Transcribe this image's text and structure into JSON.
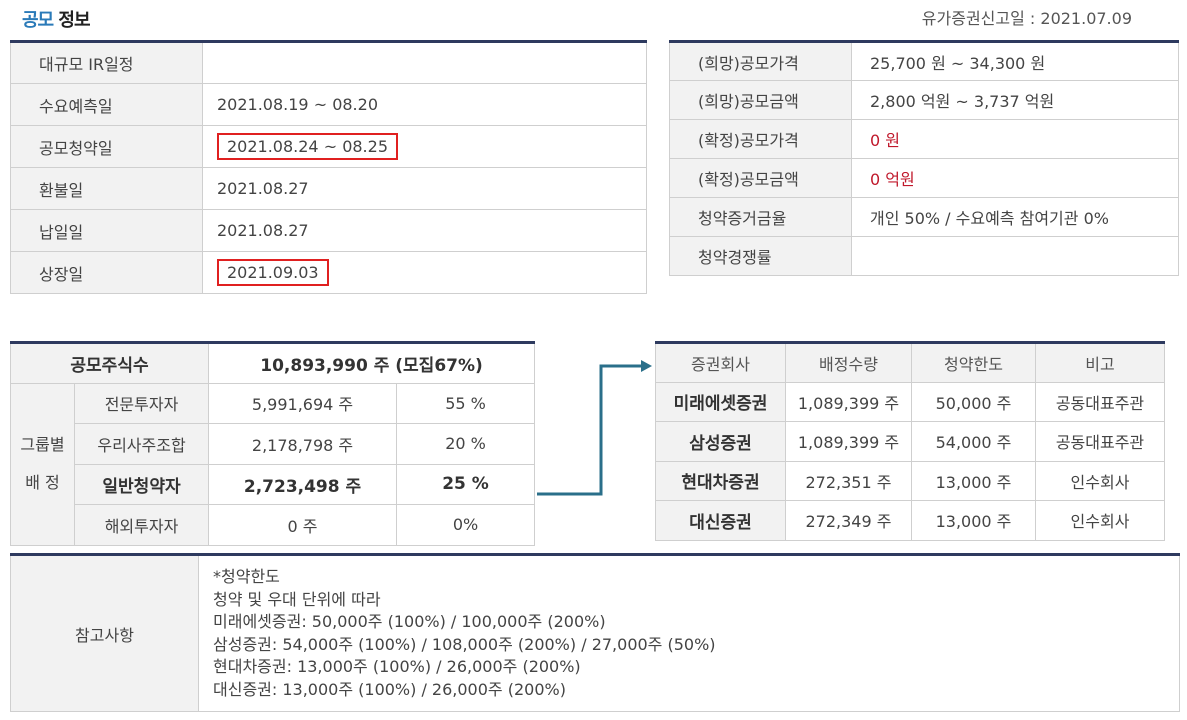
{
  "header": {
    "title_accent": "공모",
    "title_rest": "정보",
    "report_date": "유가증권신고일 : 2021.07.09"
  },
  "schedule": [
    {
      "label": "대규모 IR일정",
      "value": ""
    },
    {
      "label": "수요예측일",
      "value": "2021.08.19 ~ 08.20"
    },
    {
      "label": "공모청약일",
      "value": "2021.08.24 ~ 08.25"
    },
    {
      "label": "환불일",
      "value": "2021.08.27"
    },
    {
      "label": "납일일",
      "value": "2021.08.27"
    },
    {
      "label": "상장일",
      "value": "2021.09.03"
    }
  ],
  "price": [
    {
      "label": "(희망)공모가격",
      "value": "25,700 원 ~ 34,300 원"
    },
    {
      "label": "(희망)공모금액",
      "value": "2,800 억원  ~ 3,737 억원"
    },
    {
      "label": "(확정)공모가격",
      "value": "0 원"
    },
    {
      "label": "(확정)공모금액",
      "value": "0 억원"
    },
    {
      "label": "청약증거금율",
      "value": "개인 50% / 수요예측 참여기관 0%"
    },
    {
      "label": "청약경쟁률",
      "value": ""
    }
  ],
  "shares": {
    "total_label": "공모주식수",
    "total_value": "10,893,990 주 (모집67%)",
    "group_label_1": "그룹별",
    "group_label_2": "배 정",
    "rows": [
      {
        "label": "전문투자자",
        "qty": "5,991,694 주",
        "pct": "55 %"
      },
      {
        "label": "우리사주조합",
        "qty": "2,178,798 주",
        "pct": "20 %"
      },
      {
        "label": "일반청약자",
        "qty": "2,723,498 주",
        "pct": "25 %"
      },
      {
        "label": "해외투자자",
        "qty": "0 주",
        "pct": "0%"
      }
    ]
  },
  "brokers": {
    "headers": [
      "증권회사",
      "배정수량",
      "청약한도",
      "비고"
    ],
    "rows": [
      {
        "firm": "미래에셋증권",
        "alloc": "1,089,399 주",
        "limit": "50,000 주",
        "note": "공동대표주관"
      },
      {
        "firm": "삼성증권",
        "alloc": "1,089,399 주",
        "limit": "54,000 주",
        "note": "공동대표주관"
      },
      {
        "firm": "현대차증권",
        "alloc": "272,351 주",
        "limit": "13,000 주",
        "note": "인수회사"
      },
      {
        "firm": "대신증권",
        "alloc": "272,349 주",
        "limit": "13,000 주",
        "note": "인수회사"
      }
    ]
  },
  "notes": {
    "label": "참고사항",
    "lines": [
      "*청약한도",
      "청약 및 우대 단위에 따라",
      "미래에셋증권: 50,000주 (100%) / 100,000주 (200%)",
      "삼성증권: 54,000주 (100%) / 108,000주 (200%) / 27,000주 (50%)",
      "현대차증권: 13,000주 (100%) / 26,000주 (200%)",
      "대신증권: 13,000주 (100%) / 26,000주 (200%)"
    ]
  },
  "colors": {
    "accent": "#2a7ab8",
    "table_topline": "#2e3a5f",
    "highlight_box": "#e02020",
    "confirmed_value": "#c0182b",
    "arrow": "#2a6f8a"
  }
}
